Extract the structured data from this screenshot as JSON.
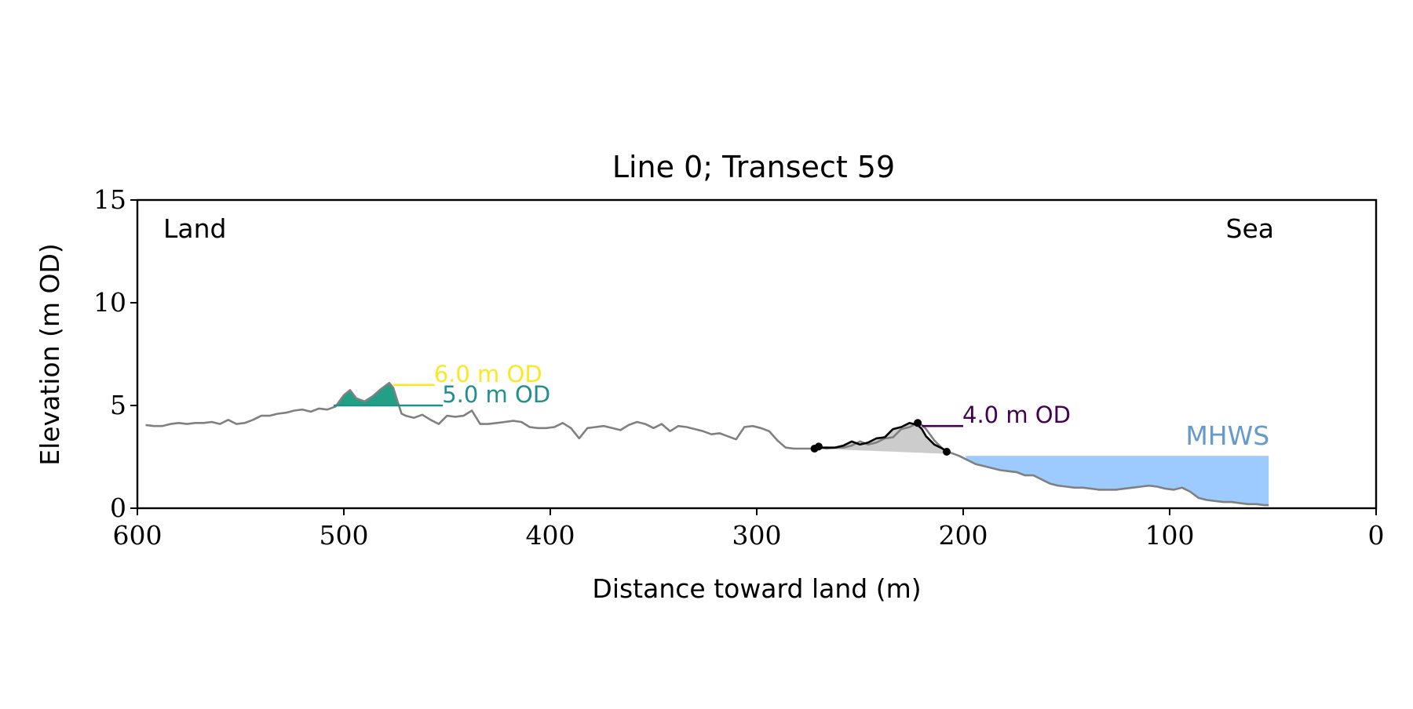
{
  "chart_data": {
    "type": "line",
    "title": "Line 0; Transect 59",
    "xlabel": "Distance toward land (m)",
    "ylabel": "Elevation (m OD)",
    "xlim": [
      600,
      0
    ],
    "ylim": [
      0,
      15
    ],
    "x_ticks": [
      600,
      500,
      400,
      300,
      200,
      100,
      0
    ],
    "y_ticks": [
      0,
      5,
      10,
      15
    ],
    "grid": false,
    "corner_labels": {
      "left": "Land",
      "right": "Sea"
    },
    "colors": {
      "profile": "#808080",
      "selected_profile": "#000000",
      "selected_fill": "#cccccc",
      "mhws_fill": "#9dcbff",
      "mhws_label": "#6699cc",
      "level_6": "#fde725",
      "level_5": "#21908d",
      "level_5_fill": "#21a085",
      "level_4": "#440154"
    },
    "mhws": {
      "label": "MHWS",
      "elevation": 2.55,
      "x_from": 199,
      "x_to": 52
    },
    "levels": [
      {
        "label": "6.0 m OD",
        "elevation": 6.0,
        "x_from": 476,
        "x_to": 456,
        "color_key": "level_6"
      },
      {
        "label": "5.0 m OD",
        "elevation": 5.0,
        "x_from": 505,
        "x_to": 452,
        "color_key": "level_5"
      },
      {
        "label": "4.0 m OD",
        "elevation": 4.0,
        "x_from": 220,
        "x_to": 200,
        "color_key": "level_4"
      }
    ],
    "dune_fill_5m": {
      "x": [
        504,
        500,
        497,
        494,
        490,
        486,
        482,
        478,
        476,
        474,
        473
      ],
      "y": [
        5.0,
        5.5,
        5.75,
        5.35,
        5.2,
        5.45,
        5.8,
        6.1,
        5.85,
        5.3,
        5.0
      ]
    },
    "profile": {
      "x": [
        596,
        592,
        588,
        584,
        580,
        576,
        572,
        568,
        564,
        560,
        556,
        552,
        548,
        544,
        540,
        536,
        532,
        528,
        524,
        520,
        516,
        512,
        508,
        504,
        500,
        497,
        494,
        490,
        486,
        482,
        478,
        476,
        474,
        472,
        470,
        466,
        462,
        458,
        454,
        450,
        446,
        442,
        438,
        434,
        430,
        426,
        422,
        418,
        414,
        410,
        406,
        402,
        398,
        394,
        390,
        386,
        382,
        378,
        374,
        370,
        366,
        362,
        358,
        354,
        350,
        346,
        342,
        338,
        334,
        330,
        326,
        322,
        318,
        314,
        310,
        306,
        302,
        298,
        294,
        290,
        286,
        282,
        278,
        274,
        270,
        266,
        262,
        258,
        254,
        250,
        246,
        242,
        238,
        234,
        230,
        226,
        222,
        220,
        218,
        214,
        210,
        206,
        202,
        198,
        194,
        190,
        186,
        182,
        178,
        174,
        170,
        166,
        162,
        158,
        154,
        150,
        146,
        142,
        138,
        134,
        130,
        126,
        122,
        118,
        114,
        110,
        106,
        102,
        98,
        94,
        90,
        86,
        82,
        78,
        74,
        70,
        66,
        62,
        58,
        54,
        52
      ],
      "y": [
        4.05,
        4.0,
        4.0,
        4.1,
        4.15,
        4.1,
        4.15,
        4.15,
        4.2,
        4.1,
        4.3,
        4.1,
        4.15,
        4.3,
        4.5,
        4.5,
        4.6,
        4.65,
        4.75,
        4.8,
        4.7,
        4.85,
        4.8,
        4.95,
        5.5,
        5.75,
        5.35,
        5.2,
        5.45,
        5.8,
        6.1,
        5.85,
        5.2,
        4.6,
        4.5,
        4.4,
        4.55,
        4.3,
        4.1,
        4.5,
        4.45,
        4.5,
        4.75,
        4.1,
        4.1,
        4.15,
        4.2,
        4.25,
        4.2,
        3.95,
        3.9,
        3.9,
        3.95,
        4.15,
        3.9,
        3.4,
        3.9,
        3.95,
        4.0,
        3.9,
        3.8,
        4.05,
        4.2,
        4.1,
        3.9,
        4.1,
        3.75,
        4.0,
        3.95,
        3.85,
        3.75,
        3.6,
        3.65,
        3.5,
        3.35,
        3.95,
        4.0,
        3.9,
        3.75,
        3.3,
        2.95,
        2.9,
        2.9,
        2.9,
        2.95,
        2.9,
        2.95,
        2.95,
        3.05,
        3.25,
        3.1,
        3.2,
        3.4,
        3.45,
        3.85,
        3.95,
        4.15,
        4.05,
        3.85,
        3.3,
        2.9,
        2.7,
        2.55,
        2.35,
        2.15,
        2.05,
        1.95,
        1.85,
        1.8,
        1.75,
        1.6,
        1.6,
        1.4,
        1.2,
        1.1,
        1.05,
        1.0,
        1.0,
        0.95,
        0.9,
        0.9,
        0.9,
        0.95,
        1.0,
        1.05,
        1.1,
        1.05,
        0.95,
        0.9,
        1.0,
        0.8,
        0.5,
        0.4,
        0.35,
        0.3,
        0.3,
        0.25,
        0.2,
        0.2,
        0.15,
        0.15
      ]
    },
    "selected_segment": {
      "x": [
        272,
        270,
        266,
        262,
        258,
        254,
        250,
        246,
        242,
        238,
        234,
        230,
        226,
        222,
        220,
        218,
        214,
        210,
        208
      ],
      "y": [
        2.9,
        2.95,
        2.95,
        2.95,
        3.05,
        3.25,
        3.1,
        3.2,
        3.4,
        3.45,
        3.85,
        3.95,
        4.15,
        4.05,
        3.85,
        3.5,
        3.1,
        2.9,
        2.75
      ],
      "fill_base_y": [
        2.9,
        2.65
      ],
      "markers": [
        {
          "x": 272,
          "y": 2.9
        },
        {
          "x": 270,
          "y": 3.0
        },
        {
          "x": 222,
          "y": 4.15
        },
        {
          "x": 208,
          "y": 2.75
        }
      ]
    }
  }
}
